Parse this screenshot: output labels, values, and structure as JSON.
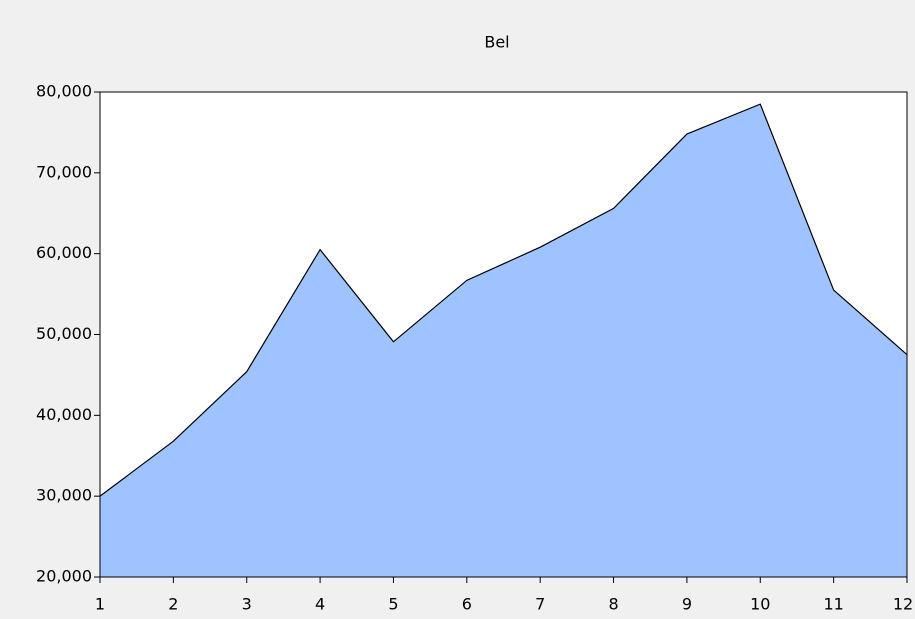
{
  "chart_data": {
    "type": "area",
    "title": "Bel",
    "x": [
      1,
      2,
      3,
      4,
      5,
      6,
      7,
      8,
      9,
      10,
      11,
      12
    ],
    "series": [
      {
        "name": "Bel",
        "color": "#9ec3ff",
        "values": [
          30000,
          36800,
          45400,
          60500,
          49100,
          56700,
          60800,
          65600,
          74800,
          78500,
          55500,
          47500
        ]
      }
    ],
    "xlim": [
      1,
      12
    ],
    "xticks": [
      1,
      2,
      3,
      4,
      5,
      6,
      7,
      8,
      9,
      10,
      11,
      12
    ],
    "ylim": [
      20000,
      80000
    ],
    "yticks": [
      {
        "value": 20000,
        "label": "20,000"
      },
      {
        "value": 30000,
        "label": "30,000"
      },
      {
        "value": 40000,
        "label": "40,000"
      },
      {
        "value": 50000,
        "label": "50,000"
      },
      {
        "value": 60000,
        "label": "60,000"
      },
      {
        "value": 70000,
        "label": "70,000"
      },
      {
        "value": 80000,
        "label": "80,000"
      }
    ]
  }
}
